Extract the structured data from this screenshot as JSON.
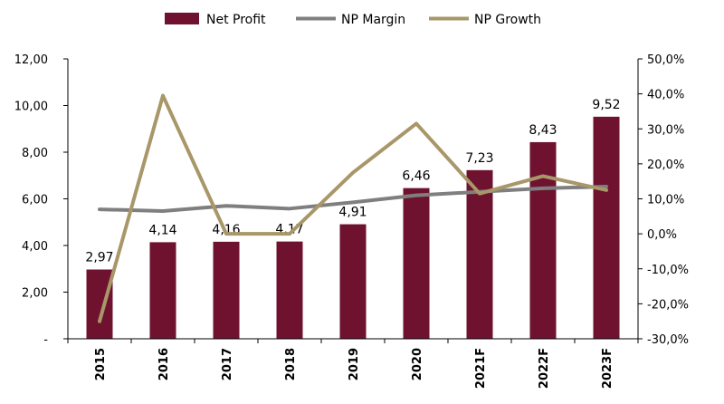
{
  "chart_data": {
    "type": "bar",
    "categories": [
      "2015",
      "2016",
      "2017",
      "2018",
      "2019",
      "2020",
      "2021F",
      "2022F",
      "2023F"
    ],
    "series": [
      {
        "name": "Net Profit",
        "kind": "bar",
        "axis": "left",
        "color": "#6e1230",
        "values": [
          2.97,
          4.14,
          4.16,
          4.17,
          4.91,
          6.46,
          7.23,
          8.43,
          9.52
        ],
        "labels": [
          "2,97",
          "4,14",
          "4,16",
          "4,17",
          "4,91",
          "6,46",
          "7,23",
          "8,43",
          "9,52"
        ]
      },
      {
        "name": "NP Margin",
        "kind": "line",
        "axis": "right",
        "color": "#7f7f7f",
        "values": [
          7.0,
          6.5,
          8.0,
          7.2,
          9.0,
          11.0,
          12.0,
          13.0,
          13.5
        ]
      },
      {
        "name": "NP Growth",
        "kind": "line",
        "axis": "right",
        "color": "#a89768",
        "values": [
          -25.0,
          39.5,
          0.0,
          0.0,
          17.5,
          31.5,
          11.5,
          16.5,
          12.5
        ]
      }
    ],
    "y_left": {
      "ylim": [
        0,
        12
      ],
      "ticks": [
        0,
        2,
        4,
        6,
        8,
        10,
        12
      ],
      "tick_labels": [
        "-",
        "2,00",
        "4,00",
        "6,00",
        "8,00",
        "10,00",
        "12,00"
      ]
    },
    "y_right": {
      "ylim": [
        -30,
        50
      ],
      "ticks": [
        -30,
        -20,
        -10,
        0,
        10,
        20,
        30,
        40,
        50
      ],
      "tick_labels": [
        "-30,0%",
        "-20,0%",
        "-10,0%",
        "0,0%",
        "10,0%",
        "20,0%",
        "30,0%",
        "40,0%",
        "50,0%"
      ]
    },
    "grid": false,
    "legend_position": "top"
  }
}
